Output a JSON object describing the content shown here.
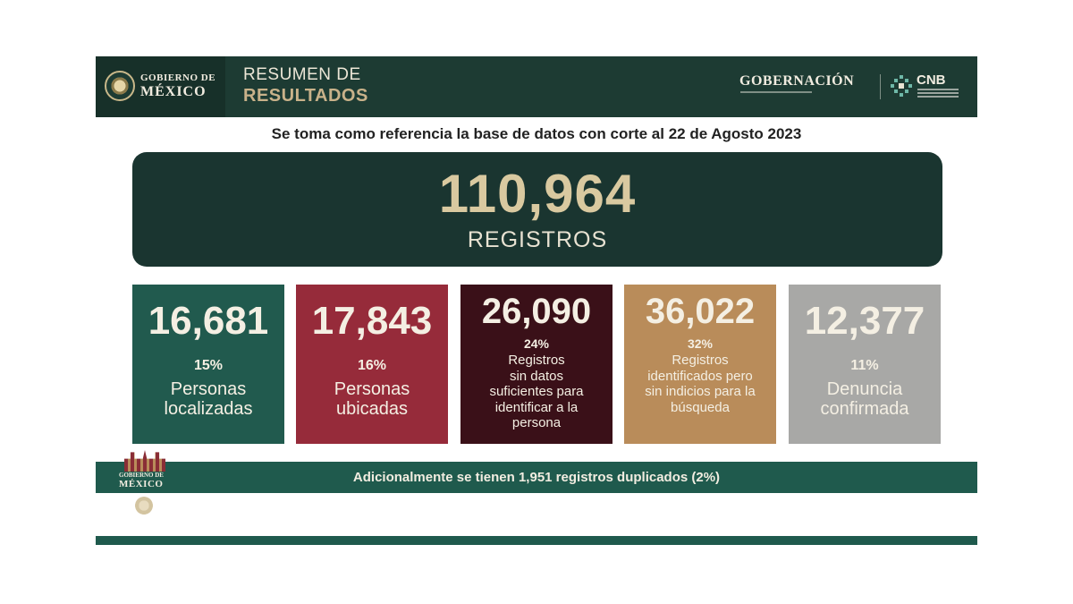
{
  "header": {
    "gov_line1": "GOBIERNO DE",
    "gov_line2": "MÉXICO",
    "title_line1": "RESUMEN DE",
    "title_line2": "RESULTADOS",
    "agency": "GOBERNACIÓN",
    "cnb": "CNB"
  },
  "reference_text": "Se toma como referencia la base de datos con corte al 22 de Agosto 2023",
  "total": {
    "value": "110,964",
    "label": "REGISTROS"
  },
  "cards": [
    {
      "value": "16,681",
      "percent": "15%",
      "desc_lines": [
        "Personas",
        "localizadas"
      ],
      "color": "#215a4e"
    },
    {
      "value": "17,843",
      "percent": "16%",
      "desc_lines": [
        "Personas",
        "ubicadas"
      ],
      "color": "#962b3a"
    },
    {
      "value": "26,090",
      "percent": "24%",
      "desc_lines": [
        "Registros",
        "sin datos",
        "suficientes para",
        "identificar a la",
        "persona"
      ],
      "color": "#3a1018"
    },
    {
      "value": "36,022",
      "percent": "32%",
      "desc_lines": [
        "Registros",
        "identificados pero",
        "sin indicios para la",
        "búsqueda"
      ],
      "color": "#b98c5a"
    },
    {
      "value": "12,377",
      "percent": "11%",
      "desc_lines": [
        "Denuncia",
        "confirmada"
      ],
      "color": "#a8a8a6"
    }
  ],
  "footer": {
    "text_pre": "Adicionalmente se tienen ",
    "count": "1,951",
    "text_post": " registros duplicados (2%)",
    "logo_line1": "GOBIERNO DE",
    "logo_line2": "MÉXICO"
  },
  "colors": {
    "header_bg": "#1d3b33",
    "total_bg": "#1a3530",
    "total_number": "#d9c9a0",
    "bar_bg": "#1f5a4d"
  }
}
